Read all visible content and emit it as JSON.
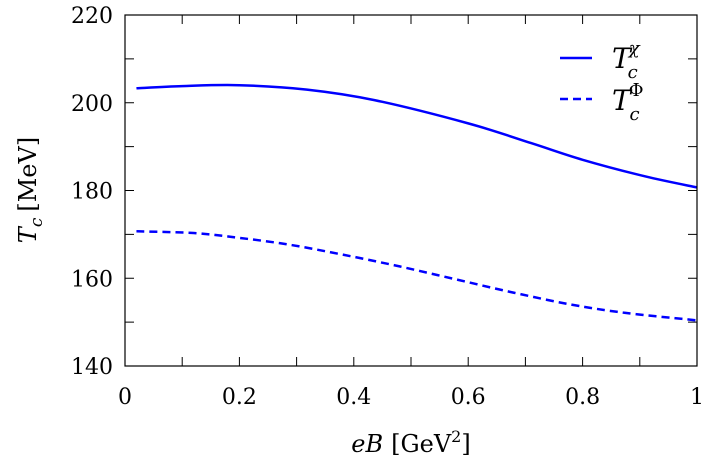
{
  "chart_data": {
    "type": "line",
    "xlabel": {
      "symbol": "eB",
      "unit_open": "[GeV",
      "unit_sup": "2",
      "unit_close": "]"
    },
    "ylabel": {
      "symbol": "T",
      "sub": "c",
      "unit": "[MeV]"
    },
    "xlim": [
      0,
      1
    ],
    "ylim": [
      140,
      220
    ],
    "xticks": [
      "0",
      "0.2",
      "0.4",
      "0.6",
      "0.8",
      "1"
    ],
    "yticks": [
      "140",
      "160",
      "180",
      "200",
      "220"
    ],
    "grid": false,
    "legend_placement": "top-right",
    "color": "#0000ff",
    "series": [
      {
        "name": {
          "symbol": "T",
          "sub": "c",
          "sup": "χ"
        },
        "style": "solid",
        "x": [
          0.02,
          0.1,
          0.2,
          0.318,
          0.436,
          0.6,
          0.71,
          0.8,
          0.91,
          1.0
        ],
        "y": [
          203.3,
          203.8,
          204.0,
          203.0,
          200.6,
          195.3,
          190.8,
          187.0,
          183.2,
          180.7
        ]
      },
      {
        "name": {
          "symbol": "T",
          "sub": "c",
          "sup": "Φ"
        },
        "style": "dashed",
        "x": [
          0.02,
          0.12,
          0.2,
          0.285,
          0.38,
          0.48,
          0.58,
          0.68,
          0.78,
          0.875,
          1.0
        ],
        "y": [
          170.7,
          170.3,
          169.2,
          167.7,
          165.4,
          162.7,
          159.7,
          156.7,
          154.0,
          152.1,
          150.4
        ]
      }
    ]
  }
}
